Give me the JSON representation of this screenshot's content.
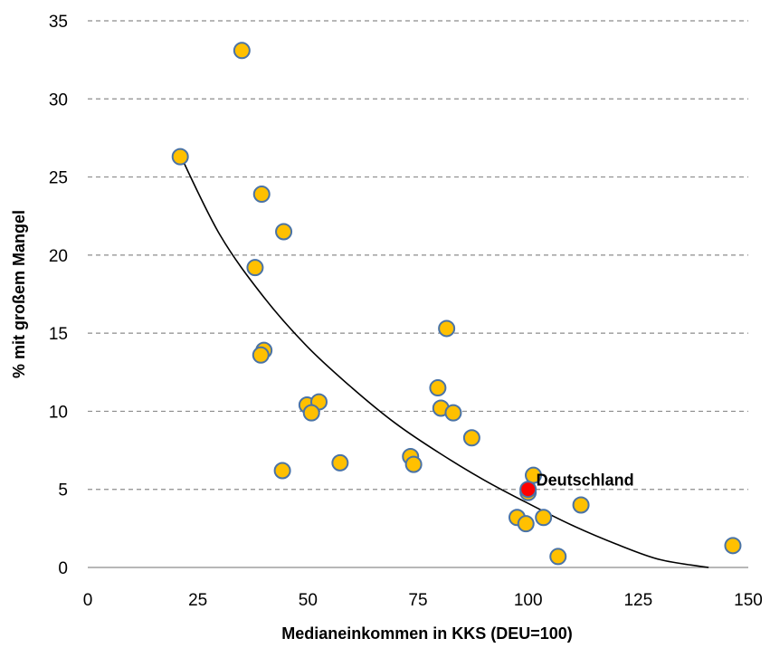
{
  "chart_data": {
    "type": "scatter",
    "title": "",
    "xlabel": "Medianeinkommen in KKS (DEU=100)",
    "ylabel": "% mit großem Mangel",
    "xlim": [
      0,
      150
    ],
    "ylim": [
      0,
      35
    ],
    "xticks": [
      0,
      25,
      50,
      75,
      100,
      125,
      150
    ],
    "yticks": [
      0,
      5,
      10,
      15,
      20,
      25,
      30,
      35
    ],
    "grid": "horizontal dashed",
    "colors": {
      "points": "#ffc000",
      "point_border": "#4a73a6",
      "highlight": "#ff0000",
      "trendline": "#000000"
    },
    "series": [
      {
        "points": [
          {
            "x": 35,
            "y": 33.1
          },
          {
            "x": 21,
            "y": 26.3
          },
          {
            "x": 39.5,
            "y": 23.9
          },
          {
            "x": 44.5,
            "y": 21.5
          },
          {
            "x": 38,
            "y": 19.2
          },
          {
            "x": 81.5,
            "y": 15.3
          },
          {
            "x": 40,
            "y": 13.9
          },
          {
            "x": 39.3,
            "y": 13.6
          },
          {
            "x": 79.5,
            "y": 11.5
          },
          {
            "x": 49.8,
            "y": 10.4
          },
          {
            "x": 52.5,
            "y": 10.6
          },
          {
            "x": 80.2,
            "y": 10.2
          },
          {
            "x": 83,
            "y": 9.9
          },
          {
            "x": 50.8,
            "y": 9.9
          },
          {
            "x": 87.2,
            "y": 8.3
          },
          {
            "x": 73.3,
            "y": 7.1
          },
          {
            "x": 74,
            "y": 6.6
          },
          {
            "x": 57.3,
            "y": 6.7
          },
          {
            "x": 44.2,
            "y": 6.2
          },
          {
            "x": 101.2,
            "y": 5.9
          },
          {
            "x": 100,
            "y": 4.8
          },
          {
            "x": 112,
            "y": 4.0
          },
          {
            "x": 97.5,
            "y": 3.2
          },
          {
            "x": 103.5,
            "y": 3.2
          },
          {
            "x": 99.5,
            "y": 2.8
          },
          {
            "x": 106.8,
            "y": 0.7
          },
          {
            "x": 146.5,
            "y": 1.4
          }
        ]
      }
    ],
    "highlight": {
      "x": 100,
      "y": 5.0,
      "label": "Deutschland"
    },
    "trendline": {
      "type": "logarithmic",
      "points": [
        {
          "x": 21,
          "y": 26.4
        },
        {
          "x": 30,
          "y": 21.3
        },
        {
          "x": 40,
          "y": 17.3
        },
        {
          "x": 50,
          "y": 14.1
        },
        {
          "x": 60,
          "y": 11.5
        },
        {
          "x": 70,
          "y": 9.2
        },
        {
          "x": 80,
          "y": 7.3
        },
        {
          "x": 90,
          "y": 5.6
        },
        {
          "x": 100,
          "y": 4.1
        },
        {
          "x": 110,
          "y": 2.7
        },
        {
          "x": 120,
          "y": 1.5
        },
        {
          "x": 130,
          "y": 0.5
        },
        {
          "x": 141,
          "y": 0
        }
      ]
    }
  }
}
